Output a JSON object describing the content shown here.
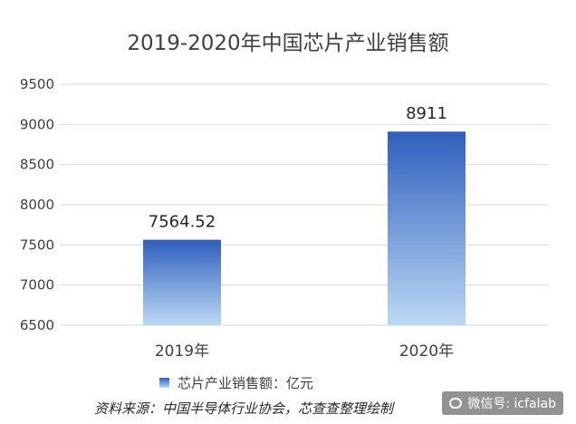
{
  "chart_data": {
    "type": "bar",
    "title": "2019-2020年中国芯片产业销售额",
    "categories": [
      "2019年",
      "2020年"
    ],
    "series": [
      {
        "name": "芯片产业销售额：亿元",
        "values": [
          7564.52,
          8911
        ]
      }
    ],
    "data_labels": [
      "7564.52",
      "8911"
    ],
    "ylim": [
      6500,
      9500
    ],
    "yticks": [
      6500,
      7000,
      7500,
      8000,
      8500,
      9000,
      9500
    ],
    "grid": true,
    "legend_position": "bottom-left",
    "bar_gradient": [
      "#2f5fbd",
      "#bcd8f3"
    ],
    "axis_color": "#d9d9d9"
  },
  "footer": {
    "source": "资料来源：中国半导体行业协会，芯查查整理绘制",
    "wechat": "微信号: icfalab"
  },
  "icons": {
    "wechat": "wechat-icon"
  }
}
